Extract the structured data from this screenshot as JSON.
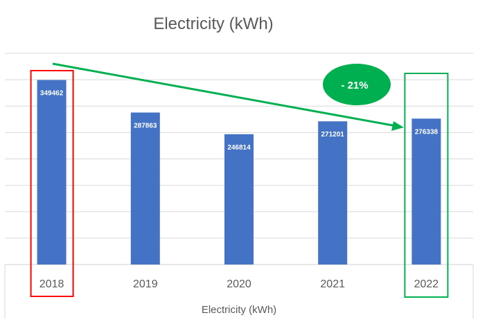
{
  "chart_data": {
    "type": "bar",
    "title": "Electricity (kWh)",
    "xlabel": "Electricity (kWh)",
    "ylabel": "",
    "categories": [
      "2018",
      "2019",
      "2020",
      "2021",
      "2022"
    ],
    "values": [
      349462,
      287863,
      246814,
      271201,
      276338
    ],
    "data_labels": [
      "349462",
      "287863",
      "246814",
      "271201",
      "276338"
    ],
    "ylim": [
      0,
      400000
    ],
    "grid": true,
    "y_tick_labels_visible": false,
    "bar_color": "#4472C4",
    "annotations": {
      "change_label": "- 21%",
      "change_color": "#00B050",
      "highlight_start": {
        "category": "2018",
        "color": "#FF0000"
      },
      "highlight_end": {
        "category": "2022",
        "color": "#00B050"
      },
      "arrow": {
        "from": "2018",
        "to": "2022",
        "color": "#00B050"
      }
    }
  }
}
